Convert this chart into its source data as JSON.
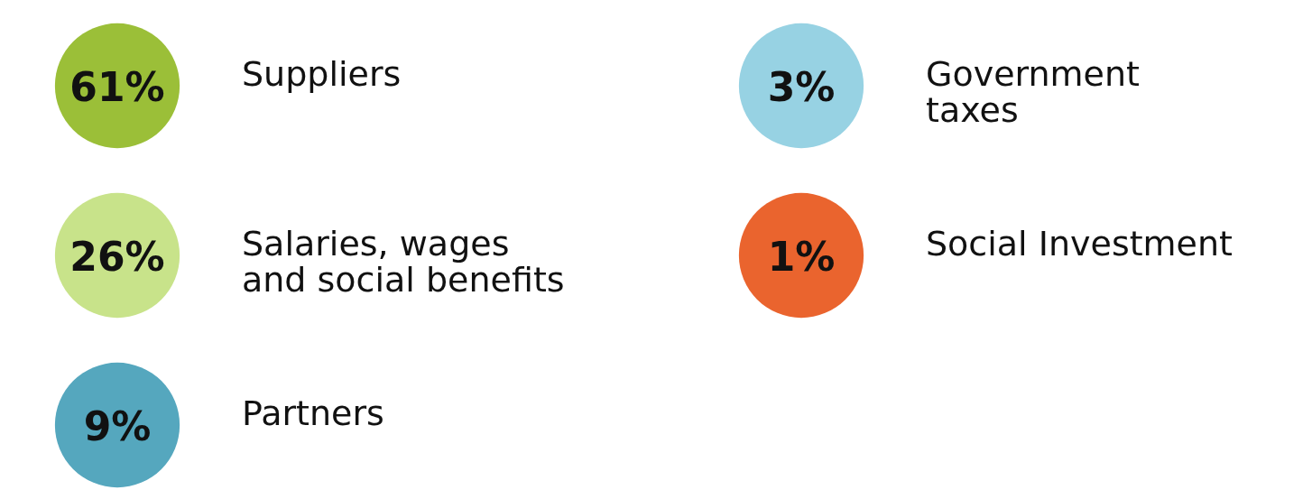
{
  "chart_data": {
    "type": "other",
    "categories": [
      "Suppliers",
      "Salaries, wages\nand social benefits",
      "Partners",
      "Government\ntaxes",
      "Social Investment"
    ],
    "values": [
      61,
      26,
      9,
      3,
      1
    ],
    "value_labels": [
      "61%",
      "26%",
      "9%",
      "3%",
      "1%"
    ],
    "colors": [
      "#9bbf38",
      "#c8e38a",
      "#55a7be",
      "#97d2e3",
      "#ea642e"
    ]
  }
}
